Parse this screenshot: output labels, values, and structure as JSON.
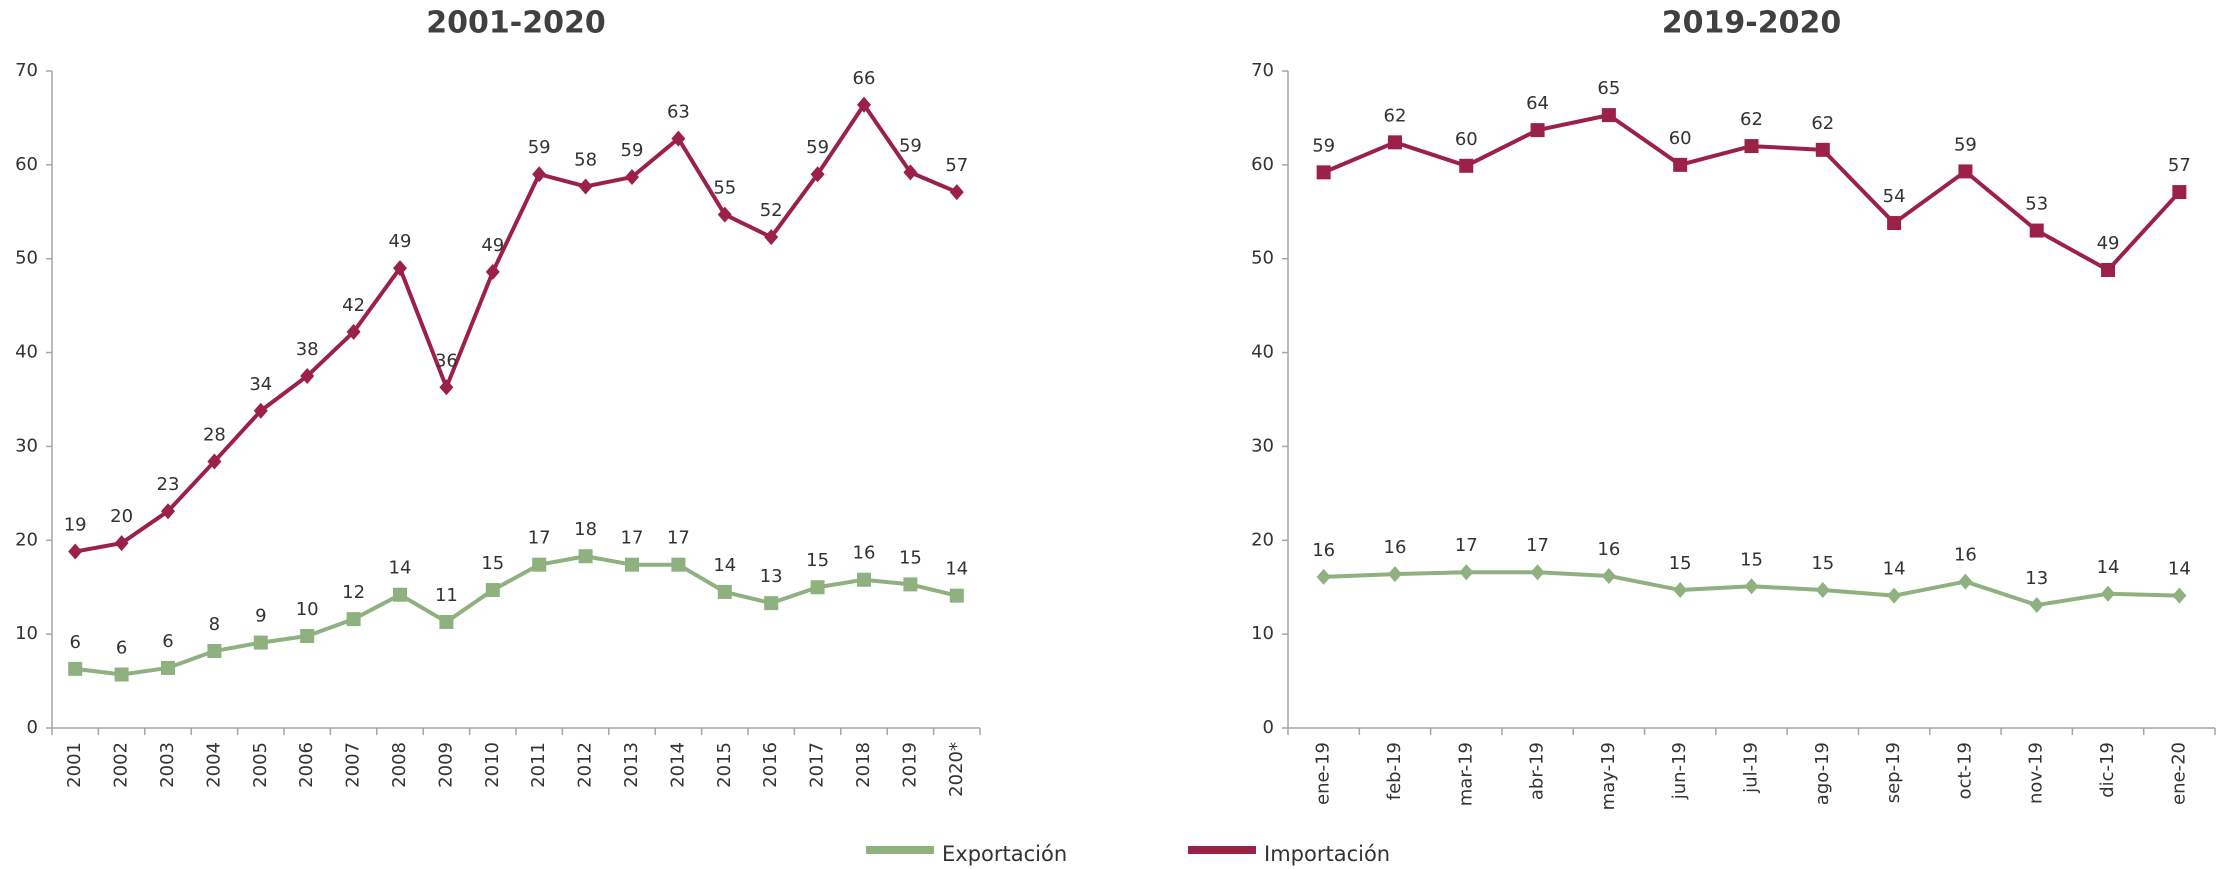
{
  "chart_data": [
    {
      "type": "line",
      "title": "2001-2020",
      "categories": [
        "2001",
        "2002",
        "2003",
        "2004",
        "2005",
        "2006",
        "2007",
        "2008",
        "2009",
        "2010",
        "2011",
        "2012",
        "2013",
        "2014",
        "2015",
        "2016",
        "2017",
        "2018",
        "2019",
        "2020*"
      ],
      "ylim": [
        0,
        70
      ],
      "yticks": [
        0,
        10,
        20,
        30,
        40,
        50,
        60,
        70
      ],
      "series": [
        {
          "name": "Exportación",
          "color": "#8fb07f",
          "marker": "square",
          "values": [
            6.3,
            5.7,
            6.4,
            8.2,
            9.1,
            9.8,
            11.6,
            14.2,
            11.3,
            14.7,
            17.4,
            18.3,
            17.4,
            17.4,
            14.5,
            13.3,
            15.0,
            15.8,
            15.3,
            14.1
          ],
          "value_labels": [
            "6",
            "6",
            "6",
            "8",
            "9",
            "10",
            "12",
            "14",
            "11",
            "15",
            "17",
            "18",
            "17",
            "17",
            "14",
            "13",
            "15",
            "16",
            "15",
            "14"
          ]
        },
        {
          "name": "Importación",
          "color": "#9b2246",
          "marker": "diamond",
          "values": [
            18.8,
            19.7,
            23.1,
            28.4,
            33.8,
            37.5,
            42.2,
            49.0,
            36.3,
            48.6,
            59.0,
            57.7,
            58.7,
            62.8,
            54.7,
            52.3,
            59.0,
            66.4,
            59.2,
            57.1
          ],
          "value_labels": [
            "19",
            "20",
            "23",
            "28",
            "34",
            "38",
            "42",
            "49",
            "36",
            "49",
            "59",
            "58",
            "59",
            "63",
            "55",
            "52",
            "59",
            "66",
            "59",
            "57"
          ]
        }
      ]
    },
    {
      "type": "line",
      "title": "2019-2020",
      "categories": [
        "ene-19",
        "feb-19",
        "mar-19",
        "abr-19",
        "may-19",
        "jun-19",
        "jul-19",
        "ago-19",
        "sep-19",
        "oct-19",
        "nov-19",
        "dic-19",
        "ene-20"
      ],
      "ylim": [
        0,
        70
      ],
      "yticks": [
        0,
        10,
        20,
        30,
        40,
        50,
        60,
        70
      ],
      "series": [
        {
          "name": "Exportación",
          "color": "#8fb07f",
          "marker": "diamond",
          "values": [
            16.1,
            16.4,
            16.6,
            16.6,
            16.2,
            14.7,
            15.1,
            14.7,
            14.1,
            15.6,
            13.1,
            14.3,
            14.1
          ],
          "value_labels": [
            "16",
            "16",
            "17",
            "17",
            "16",
            "15",
            "15",
            "15",
            "14",
            "16",
            "13",
            "14",
            "14"
          ]
        },
        {
          "name": "Importación",
          "color": "#9b2246",
          "marker": "square",
          "values": [
            59.2,
            62.4,
            59.9,
            63.7,
            65.3,
            60.0,
            62.0,
            61.6,
            53.8,
            59.3,
            53.0,
            48.8,
            57.1
          ],
          "value_labels": [
            "59",
            "62",
            "60",
            "64",
            "65",
            "60",
            "62",
            "62",
            "54",
            "59",
            "53",
            "49",
            "57"
          ]
        }
      ]
    }
  ]
}
